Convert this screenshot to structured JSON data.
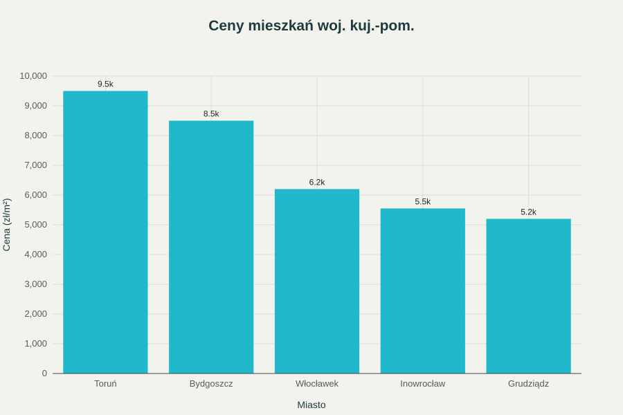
{
  "chart_data": {
    "type": "bar",
    "title": "Ceny mieszkań woj. kuj.-pom.",
    "xlabel": "Miasto",
    "ylabel": "Cena (zł/m²)",
    "categories": [
      "Toruń",
      "Bydgoszcz",
      "Włocławek",
      "Inowrocław",
      "Grudziądz"
    ],
    "values": [
      9500,
      8500,
      6200,
      5550,
      5200
    ],
    "value_labels": [
      "9.5k",
      "8.5k",
      "6.2k",
      "5.5k",
      "5.2k"
    ],
    "ylim": [
      0,
      10000
    ],
    "yticks": [
      0,
      1000,
      2000,
      3000,
      4000,
      5000,
      6000,
      7000,
      8000,
      9000,
      10000
    ],
    "ytick_labels": [
      "0",
      "1,000",
      "2,000",
      "3,000",
      "4,000",
      "5,000",
      "6,000",
      "7,000",
      "8,000",
      "9,000",
      "10,000"
    ],
    "grid": true,
    "bar_color": "#21b8cc"
  }
}
